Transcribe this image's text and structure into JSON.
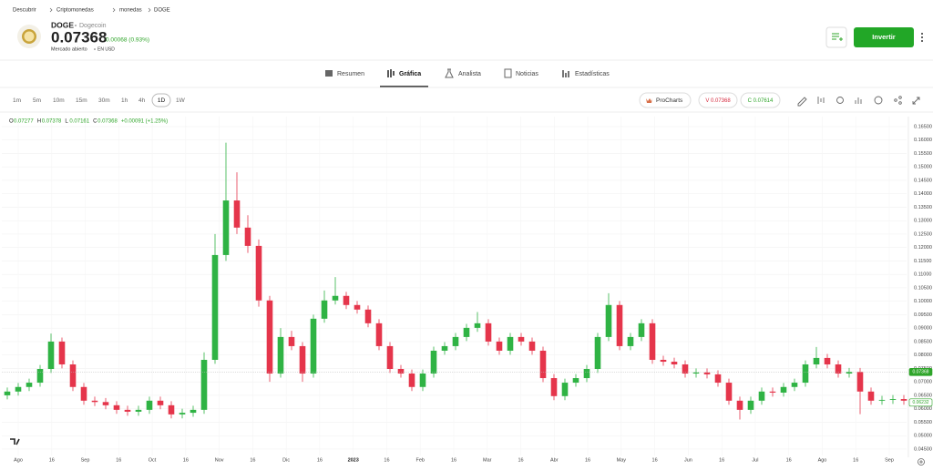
{
  "breadcrumb": [
    "Descubrir",
    "Criptomonedas",
    "monedas",
    "DOGE"
  ],
  "asset": {
    "symbol": "DOGE",
    "name": "Dogecoin",
    "price": "0.07368",
    "change": "0.00068 (0.93%)",
    "status": "Mercado abierto",
    "currency": "EN USD"
  },
  "actions": {
    "invest": "Invertir"
  },
  "tabs": [
    "Resumen",
    "Gráfica",
    "Analista",
    "Noticias",
    "Estadísticas"
  ],
  "timeframes": [
    "1m",
    "5m",
    "10m",
    "15m",
    "30m",
    "1h",
    "4h",
    "1D",
    "1W"
  ],
  "toolbar": {
    "procharts": "ProCharts",
    "sell": "V 0.07368",
    "buy": "C 0.07614"
  },
  "chart_data": {
    "type": "candlestick",
    "ohlc_legend": [
      {
        "key": "O",
        "value": "0.07277"
      },
      {
        "key": "H",
        "value": "0.07378"
      },
      {
        "key": "L",
        "value": "0.07161"
      },
      {
        "key": "C",
        "value": "0.07368"
      }
    ],
    "ohlc_change": "+0.00091 (+1.25%)",
    "up_color": "#2fb344",
    "down_color": "#e5354b",
    "ylim": [
      0.0426,
      0.1687
    ],
    "yticks": [
      {
        "value": 0.045,
        "label": "0.04500"
      },
      {
        "value": 0.05,
        "label": "0.05000"
      },
      {
        "value": 0.055,
        "label": "0.05500"
      },
      {
        "value": 0.06,
        "label": "0.06000"
      },
      {
        "value": 0.065,
        "label": "0.06500"
      },
      {
        "value": 0.07,
        "label": "0.07000"
      },
      {
        "value": 0.075,
        "label": "0.07500"
      },
      {
        "value": 0.08,
        "label": "0.08000"
      },
      {
        "value": 0.085,
        "label": "0.08500"
      },
      {
        "value": 0.09,
        "label": "0.09000"
      },
      {
        "value": 0.095,
        "label": "0.09500"
      },
      {
        "value": 0.1,
        "label": "0.10000"
      },
      {
        "value": 0.105,
        "label": "0.10500"
      },
      {
        "value": 0.11,
        "label": "0.11000"
      },
      {
        "value": 0.115,
        "label": "0.11500"
      },
      {
        "value": 0.12,
        "label": "0.12000"
      },
      {
        "value": 0.125,
        "label": "0.12500"
      },
      {
        "value": 0.13,
        "label": "0.13000"
      },
      {
        "value": 0.135,
        "label": "0.13500"
      },
      {
        "value": 0.14,
        "label": "0.14000"
      },
      {
        "value": 0.145,
        "label": "0.14500"
      },
      {
        "value": 0.15,
        "label": "0.15000"
      },
      {
        "value": 0.155,
        "label": "0.15500"
      },
      {
        "value": 0.16,
        "label": "0.16000"
      },
      {
        "value": 0.165,
        "label": "0.16500"
      }
    ],
    "grid": true,
    "x_labels": [
      "Ago",
      "16",
      "Sep",
      "16",
      "Oct",
      "16",
      "Nov",
      "16",
      "Dic",
      "16",
      "2023",
      "16",
      "Feb",
      "16",
      "Mar",
      "16",
      "Abr",
      "16",
      "May",
      "16",
      "Jun",
      "16",
      "Jul",
      "16",
      "Ago",
      "16",
      "Sep"
    ],
    "price_markers": [
      {
        "value": 0.07368,
        "label": "0.07368",
        "style": "filled"
      },
      {
        "value": 0.06232,
        "label": "0.06232",
        "style": "outline"
      }
    ],
    "candles": [
      [
        0.065,
        0.0679,
        0.0635,
        0.0664
      ],
      [
        0.0664,
        0.0696,
        0.0649,
        0.0681
      ],
      [
        0.0681,
        0.0712,
        0.0666,
        0.0697
      ],
      [
        0.0697,
        0.0763,
        0.0682,
        0.0748
      ],
      [
        0.0748,
        0.088,
        0.0733,
        0.085
      ],
      [
        0.085,
        0.0865,
        0.075,
        0.0765
      ],
      [
        0.0765,
        0.078,
        0.0666,
        0.0681
      ],
      [
        0.0681,
        0.0696,
        0.0615,
        0.063
      ],
      [
        0.063,
        0.0645,
        0.061,
        0.0625
      ],
      [
        0.0625,
        0.064,
        0.0598,
        0.0613
      ],
      [
        0.0613,
        0.0628,
        0.0581,
        0.0596
      ],
      [
        0.0596,
        0.0611,
        0.0574,
        0.0589
      ],
      [
        0.0589,
        0.0611,
        0.0574,
        0.0596
      ],
      [
        0.0596,
        0.0645,
        0.0581,
        0.063
      ],
      [
        0.063,
        0.0645,
        0.0598,
        0.0613
      ],
      [
        0.0613,
        0.0628,
        0.0564,
        0.0579
      ],
      [
        0.0579,
        0.06,
        0.0564,
        0.0585
      ],
      [
        0.0585,
        0.0611,
        0.057,
        0.0596
      ],
      [
        0.0596,
        0.081,
        0.0581,
        0.0782
      ],
      [
        0.0782,
        0.125,
        0.0767,
        0.1172
      ],
      [
        0.1172,
        0.159,
        0.115,
        0.1375
      ],
      [
        0.1375,
        0.148,
        0.125,
        0.1274
      ],
      [
        0.1274,
        0.132,
        0.118,
        0.1206
      ],
      [
        0.1206,
        0.123,
        0.098,
        0.1003
      ],
      [
        0.1003,
        0.102,
        0.07,
        0.0731
      ],
      [
        0.0731,
        0.09,
        0.0716,
        0.0867
      ],
      [
        0.0867,
        0.089,
        0.0818,
        0.0833
      ],
      [
        0.0833,
        0.0848,
        0.07,
        0.0731
      ],
      [
        0.0731,
        0.095,
        0.0716,
        0.0935
      ],
      [
        0.0935,
        0.104,
        0.092,
        0.1003
      ],
      [
        0.1003,
        0.109,
        0.0988,
        0.102
      ],
      [
        0.102,
        0.1035,
        0.0971,
        0.0986
      ],
      [
        0.0986,
        0.1001,
        0.0954,
        0.0969
      ],
      [
        0.0969,
        0.0984,
        0.0903,
        0.0918
      ],
      [
        0.0918,
        0.0933,
        0.0818,
        0.0833
      ],
      [
        0.0833,
        0.0848,
        0.0733,
        0.0748
      ],
      [
        0.0748,
        0.0763,
        0.0716,
        0.0731
      ],
      [
        0.0731,
        0.0746,
        0.0666,
        0.0681
      ],
      [
        0.0681,
        0.0746,
        0.0666,
        0.0731
      ],
      [
        0.0731,
        0.0831,
        0.0716,
        0.0816
      ],
      [
        0.0816,
        0.0848,
        0.0801,
        0.0833
      ],
      [
        0.0833,
        0.0882,
        0.0818,
        0.0867
      ],
      [
        0.0867,
        0.0916,
        0.0852,
        0.0901
      ],
      [
        0.0901,
        0.096,
        0.0886,
        0.0918
      ],
      [
        0.0918,
        0.0933,
        0.0835,
        0.085
      ],
      [
        0.085,
        0.0865,
        0.0801,
        0.0816
      ],
      [
        0.0816,
        0.0882,
        0.0801,
        0.0867
      ],
      [
        0.0867,
        0.0882,
        0.0835,
        0.085
      ],
      [
        0.085,
        0.0865,
        0.0801,
        0.0816
      ],
      [
        0.0816,
        0.0831,
        0.0699,
        0.0714
      ],
      [
        0.0714,
        0.0729,
        0.0632,
        0.0647
      ],
      [
        0.0647,
        0.0712,
        0.0632,
        0.0697
      ],
      [
        0.0697,
        0.0729,
        0.0682,
        0.0714
      ],
      [
        0.0714,
        0.0763,
        0.0699,
        0.0748
      ],
      [
        0.0748,
        0.0882,
        0.0733,
        0.0867
      ],
      [
        0.0867,
        0.103,
        0.0852,
        0.0986
      ],
      [
        0.0986,
        0.1001,
        0.0818,
        0.0833
      ],
      [
        0.0833,
        0.0882,
        0.0818,
        0.0867
      ],
      [
        0.0867,
        0.0933,
        0.0852,
        0.0918
      ],
      [
        0.0918,
        0.0933,
        0.0767,
        0.0782
      ],
      [
        0.0782,
        0.0797,
        0.076,
        0.0775
      ],
      [
        0.0775,
        0.079,
        0.075,
        0.0765
      ],
      [
        0.0765,
        0.078,
        0.0716,
        0.0731
      ],
      [
        0.0731,
        0.075,
        0.0716,
        0.0735
      ],
      [
        0.0735,
        0.075,
        0.0713,
        0.0728
      ],
      [
        0.0728,
        0.0743,
        0.0682,
        0.0697
      ],
      [
        0.0697,
        0.0712,
        0.0615,
        0.063
      ],
      [
        0.063,
        0.0645,
        0.056,
        0.0596
      ],
      [
        0.0596,
        0.0645,
        0.0581,
        0.063
      ],
      [
        0.063,
        0.0679,
        0.0615,
        0.0664
      ],
      [
        0.0664,
        0.0679,
        0.0645,
        0.066
      ],
      [
        0.066,
        0.0696,
        0.0645,
        0.0681
      ],
      [
        0.0681,
        0.0712,
        0.0666,
        0.0697
      ],
      [
        0.0697,
        0.078,
        0.0682,
        0.0765
      ],
      [
        0.0765,
        0.083,
        0.075,
        0.0789
      ],
      [
        0.0789,
        0.0804,
        0.075,
        0.0765
      ],
      [
        0.0765,
        0.078,
        0.0716,
        0.0731
      ],
      [
        0.0731,
        0.0752,
        0.0716,
        0.0737
      ],
      [
        0.0737,
        0.0752,
        0.058,
        0.0664
      ],
      [
        0.0664,
        0.0679,
        0.0615,
        0.063
      ],
      [
        0.063,
        0.0648,
        0.0615,
        0.0633
      ],
      [
        0.0633,
        0.0651,
        0.0618,
        0.0636
      ],
      [
        0.0636,
        0.0651,
        0.0615,
        0.063
      ]
    ]
  }
}
